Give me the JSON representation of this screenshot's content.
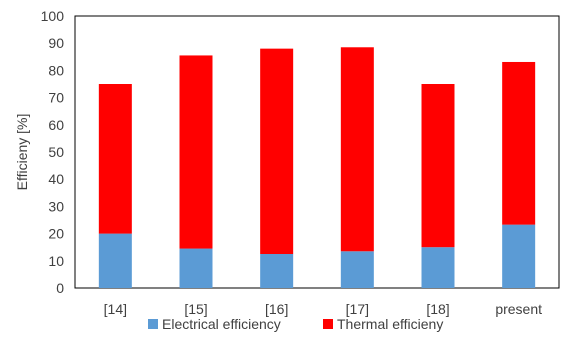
{
  "chart_data": {
    "type": "bar",
    "stacked": true,
    "categories": [
      "[14]",
      "[15]",
      "[16]",
      "[17]",
      "[18]",
      "present"
    ],
    "series": [
      {
        "name": "Electrical efficiency",
        "color": "#5B9BD5",
        "values": [
          20,
          14.5,
          12.5,
          13.5,
          15,
          23.3
        ]
      },
      {
        "name": "Thermal efficieny",
        "color": "#FF0000",
        "values": [
          55,
          71,
          75.5,
          75,
          60,
          59.8
        ]
      }
    ],
    "ylabel": "Efficieny [%]",
    "xlabel": "",
    "ylim": [
      0,
      100
    ],
    "yticks": [
      0,
      10,
      20,
      30,
      40,
      50,
      60,
      70,
      80,
      90,
      100
    ],
    "grid": false,
    "legend_position": "bottom"
  }
}
